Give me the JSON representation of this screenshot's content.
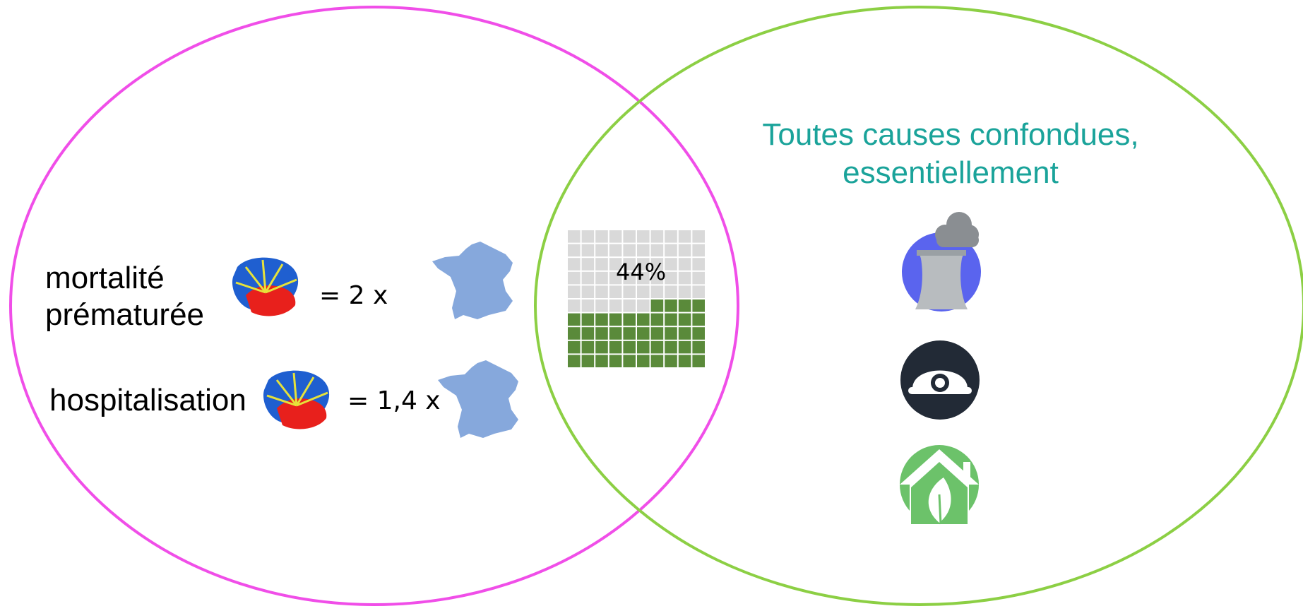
{
  "right_circle": {
    "heading_line1": "Toutes causes confondues,",
    "heading_line2": "essentiellement"
  },
  "left_circle": {
    "rows": [
      {
        "label": "mortalité\nprématurée",
        "ratio": "= 2 x"
      },
      {
        "label": "hospitalisation",
        "ratio": "= 1,4 x"
      }
    ]
  },
  "waffle": {
    "label": "44%",
    "fraction": 0.44,
    "rows": 10,
    "cols": 10,
    "filled_color": "#5a8a3a",
    "empty_color": "#d9d9d9"
  },
  "colors": {
    "left_circle": "#f04ee8",
    "right_circle": "#8ccf44",
    "reunion_blue": "#1f5fd0",
    "reunion_red": "#e8201c",
    "france": "#86a8dc"
  },
  "icons": [
    "factory-smoke-icon",
    "miner-helmet-icon",
    "green-home-leaf-icon"
  ]
}
